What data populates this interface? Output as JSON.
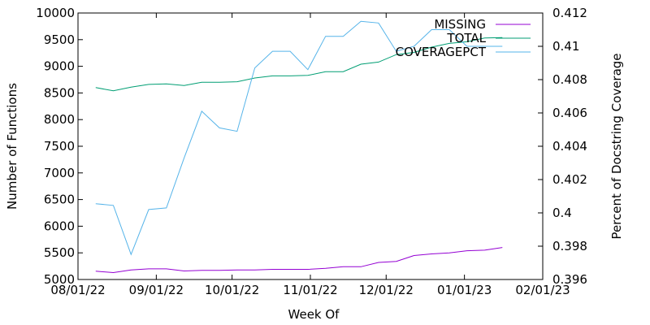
{
  "chart_data": {
    "type": "line",
    "xlabel": "Week Of",
    "ylabel": "Number of Functions",
    "y2label": "Percent of Docstring Coverage",
    "xlim": [
      "2022-08-01",
      "2023-02-01"
    ],
    "ylim": [
      5000,
      10000
    ],
    "y2lim": [
      0.396,
      0.412
    ],
    "xticks": [
      {
        "date": "2022-08-01",
        "label": "08/01/22"
      },
      {
        "date": "2022-09-01",
        "label": "09/01/22"
      },
      {
        "date": "2022-10-01",
        "label": "10/01/22"
      },
      {
        "date": "2022-11-01",
        "label": "11/01/22"
      },
      {
        "date": "2022-12-01",
        "label": "12/01/22"
      },
      {
        "date": "2023-01-01",
        "label": "01/01/23"
      },
      {
        "date": "2023-02-01",
        "label": "02/01/23"
      }
    ],
    "yticks": [
      {
        "value": 5000,
        "label": "5000"
      },
      {
        "value": 5500,
        "label": "5500"
      },
      {
        "value": 6000,
        "label": "6000"
      },
      {
        "value": 6500,
        "label": "6500"
      },
      {
        "value": 7000,
        "label": "7000"
      },
      {
        "value": 7500,
        "label": "7500"
      },
      {
        "value": 8000,
        "label": "8000"
      },
      {
        "value": 8500,
        "label": "8500"
      },
      {
        "value": 9000,
        "label": "9000"
      },
      {
        "value": 9500,
        "label": "9500"
      },
      {
        "value": 10000,
        "label": "10000"
      }
    ],
    "y2ticks": [
      {
        "value": 0.396,
        "label": "0.396"
      },
      {
        "value": 0.398,
        "label": "0.398"
      },
      {
        "value": 0.4,
        "label": "0.4"
      },
      {
        "value": 0.402,
        "label": "0.402"
      },
      {
        "value": 0.404,
        "label": "0.404"
      },
      {
        "value": 0.406,
        "label": "0.406"
      },
      {
        "value": 0.408,
        "label": "0.408"
      },
      {
        "value": 0.41,
        "label": "0.41"
      },
      {
        "value": 0.412,
        "label": "0.412"
      }
    ],
    "x": [
      "2022-08-08",
      "2022-08-15",
      "2022-08-22",
      "2022-08-29",
      "2022-09-05",
      "2022-09-12",
      "2022-09-19",
      "2022-09-26",
      "2022-10-03",
      "2022-10-10",
      "2022-10-17",
      "2022-10-24",
      "2022-10-31",
      "2022-11-07",
      "2022-11-14",
      "2022-11-21",
      "2022-11-28",
      "2022-12-05",
      "2022-12-12",
      "2022-12-19",
      "2022-12-26",
      "2023-01-02",
      "2023-01-09",
      "2023-01-16"
    ],
    "series": [
      {
        "name": "MISSING",
        "axis": "left",
        "color": "#9400d3",
        "values": [
          5155,
          5130,
          5180,
          5200,
          5200,
          5160,
          5170,
          5170,
          5180,
          5180,
          5190,
          5190,
          5190,
          5210,
          5240,
          5240,
          5320,
          5340,
          5450,
          5480,
          5500,
          5540,
          5550,
          5600
        ]
      },
      {
        "name": "TOTAL",
        "axis": "left",
        "color": "#009e73",
        "values": [
          8600,
          8540,
          8610,
          8660,
          8670,
          8640,
          8700,
          8700,
          8710,
          8780,
          8820,
          8820,
          8830,
          8900,
          8900,
          9040,
          9080,
          9220,
          9260,
          9360,
          9430,
          9460,
          9530,
          9540
        ]
      },
      {
        "name": "COVERAGEPCT",
        "axis": "right",
        "color": "#56b4e9",
        "values": [
          0.40055,
          0.40045,
          0.3975,
          0.4002,
          0.4003,
          0.4033,
          0.4061,
          0.4051,
          0.4049,
          0.4087,
          0.4097,
          0.4097,
          0.4086,
          0.4106,
          0.4106,
          0.4115,
          0.4114,
          0.4097,
          0.41,
          0.411,
          0.411,
          0.41,
          0.41,
          0.41
        ]
      }
    ],
    "legend_position": "top-right",
    "grid": false
  }
}
